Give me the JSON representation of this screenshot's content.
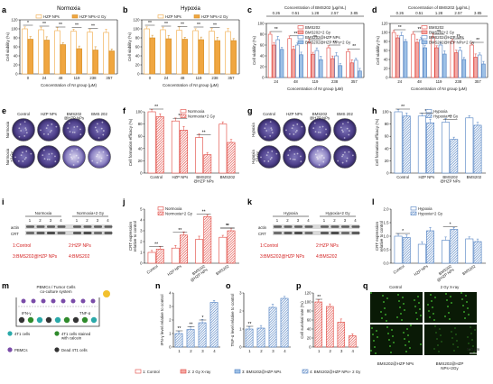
{
  "colors": {
    "orange": "#f0a640",
    "orange_dark": "#d4902a",
    "red": "#e0443c",
    "red_light": "#f4a9a4",
    "blue": "#4e7fc1",
    "blue_light": "#9ec1e6",
    "gray": "#9aa5ad",
    "purple": "#4d3f8a",
    "green": "#2f8a2b"
  },
  "panels": {
    "a": {
      "label": "a",
      "title": "Normoxia",
      "legend": [
        "HZP NPs",
        "HZP NPs+2 Gy"
      ],
      "ylabel": "Cell viability (%)",
      "xlabel": "Concentration of NI group (μM)",
      "yticks": [
        "0",
        "20",
        "40",
        "60",
        "80",
        "100",
        "120"
      ],
      "xticks": [
        "0",
        "24",
        "48",
        "119",
        "238",
        "357"
      ],
      "sig": [
        "*",
        "**",
        "**",
        "**",
        "**"
      ]
    },
    "b": {
      "label": "b",
      "title": "Hypoxia",
      "legend": [
        "HZP NPs",
        "HZP NPs+2 Gy"
      ],
      "ylabel": "Cell viability (%)",
      "xlabel": "Concentration of NI group (μM)",
      "yticks": [
        "0",
        "20",
        "40",
        "60",
        "80",
        "100",
        "120"
      ],
      "xticks": [
        "0",
        "24",
        "48",
        "119",
        "238",
        "357"
      ],
      "sig": [
        "**",
        "**",
        "**",
        "**",
        "**"
      ]
    },
    "c": {
      "label": "c",
      "title": "Normoxia",
      "toptitle": "Concentration of BMS202 (μg/mL)",
      "topticks": [
        "0.26",
        "0.51",
        "1.28",
        "2.57",
        "3.85"
      ],
      "legend": [
        "BMS202",
        "BMS202+2 Gy",
        "BMS202@HZP NPs",
        "BMS202@HZP NPs+2 Gy"
      ],
      "ylabel": "Cell viability (%)",
      "xlabel": "Concentration of NI group (μM)",
      "yticks": [
        "0",
        "20",
        "40",
        "60",
        "80",
        "100"
      ],
      "xticks": [
        "24",
        "48",
        "119",
        "238",
        "357"
      ],
      "sig": [
        "**",
        "**",
        "**",
        "**",
        "**"
      ]
    },
    "d": {
      "label": "d",
      "title": "Hypoxia",
      "toptitle": "Concentration of BMS202 (μg/mL)",
      "topticks": [
        "0.26",
        "0.51",
        "1.28",
        "2.57",
        "3.85"
      ],
      "legend": [
        "BMS202",
        "BMS202+2 Gy",
        "BMS202@HZP NPs",
        "BMS202@HZP NPs+2 Gy"
      ],
      "ylabel": "Cell viability (%)",
      "xlabel": "Concentration of NI group (μM)",
      "yticks": [
        "0",
        "20",
        "40",
        "60",
        "80",
        "100",
        "120"
      ],
      "xticks": [
        "24",
        "48",
        "119",
        "238",
        "357"
      ],
      "sig": [
        "**",
        "**",
        "**",
        "**",
        "**"
      ]
    },
    "e": {
      "label": "e",
      "cols": [
        "Control",
        "HZP NPs",
        "BMS202\n@HZP NPs",
        "BMS 202"
      ],
      "rows": [
        "Normoxia",
        "Normoxia\n+2 Gy"
      ]
    },
    "f": {
      "label": "f",
      "legend": [
        "Normoxia",
        "Normoxia+2 Gy"
      ],
      "ylabel": "Cell formation efficacy (%)",
      "yticks": [
        "0",
        "20",
        "40",
        "60",
        "80",
        "100"
      ],
      "xticks": [
        "Control",
        "HZP NPs",
        "BMS202\n@HZP NPs",
        "BMS202"
      ],
      "sig": [
        "**",
        "**",
        "**"
      ]
    },
    "g": {
      "label": "g",
      "cols": [
        "Control",
        "HZP NPs",
        "BMS202\n@HZP NPs",
        "BMS 202"
      ],
      "rows": [
        "Hypoxia",
        "Hypoxia\n+2 Gy"
      ]
    },
    "h": {
      "label": "h",
      "legend": [
        "Hypoxia",
        "Hypoxia+2 Gy"
      ],
      "ylabel": "Cell formation efficacy (%)",
      "yticks": [
        "0",
        "20",
        "40",
        "60",
        "80",
        "100"
      ],
      "xticks": [
        "Control",
        "HZP NPs",
        "BMS202\n@HZP NPs",
        "BMS202"
      ],
      "sig": [
        "**",
        "**",
        "**"
      ]
    },
    "i": {
      "label": "i",
      "group1": "Normoxia",
      "group2": "Normoxia+2 Gy",
      "lanes": [
        "1",
        "2",
        "3",
        "4",
        "1",
        "2",
        "3",
        "4"
      ],
      "rowlabels": [
        "actin",
        "CRT"
      ],
      "keys": [
        "1:Control",
        "2:HZP NPs",
        "3:BMS202@HZP NPs",
        "4:BMS202"
      ]
    },
    "j": {
      "label": "j",
      "legend": [
        "Normoxia",
        "Normoxia+2 Gy"
      ],
      "ylabel": "CRT expression\nrelative to control",
      "yticks": [
        "0",
        "1",
        "2",
        "3",
        "4",
        "5"
      ],
      "xticks": [
        "Control",
        "HZP NPs",
        "BMS202\n@HZP NPs",
        "BMS202"
      ],
      "sig": [
        "**",
        "**",
        "**",
        "*",
        "**"
      ]
    },
    "k": {
      "label": "k",
      "group1": "Hypoxia",
      "group2": "Hypoxia+2 Gy",
      "lanes": [
        "1",
        "2",
        "3",
        "4",
        "1",
        "2",
        "3",
        "4"
      ],
      "rowlabels": [
        "actin",
        "CRT"
      ],
      "keys": [
        "1:Control",
        "2:HZP NPs",
        "3:BMS202@HZP NPs",
        "4:BMS202"
      ]
    },
    "l": {
      "label": "l",
      "legend": [
        "Hypoxia",
        "Hypoxia+2 Gy"
      ],
      "ylabel": "CRT expression\nrelative to control",
      "yticks": [
        "0.0",
        "0.5",
        "1.0",
        "1.5",
        "2.0"
      ],
      "xticks": [
        "Control",
        "HZP NPs",
        "BMS202\n@HZP NPs",
        "BMS202"
      ],
      "sig": [
        "*",
        "*"
      ]
    },
    "m": {
      "label": "m",
      "title": "PBMCs / Tumor Cells\nco-culture system",
      "legend": [
        "4T1 cells",
        "4T1 cells stained\nwith calcein",
        "PBMCs",
        "Dead 4T1 cells"
      ],
      "cytokines": [
        "IFN-γ",
        "TNF-α"
      ]
    },
    "n": {
      "label": "n",
      "ylabel": "IFN-γ level relative to control",
      "yticks": [
        "0",
        "1",
        "2",
        "3",
        "4"
      ],
      "xticks": [
        "1",
        "2",
        "3",
        "4"
      ],
      "sig": [
        "**",
        "**",
        "*"
      ]
    },
    "o": {
      "label": "o",
      "ylabel": "TNF-α level relative to control",
      "yticks": [
        "0",
        "1",
        "2",
        "3"
      ],
      "xticks": [
        "1",
        "2",
        "3",
        "4"
      ],
      "sig": [
        "**"
      ]
    },
    "p": {
      "label": "p",
      "ylabel": "Cell survival rate (%)",
      "yticks": [
        "0",
        "20",
        "40",
        "60",
        "80",
        "100",
        "120"
      ],
      "xticks": [
        "1",
        "2",
        "3",
        "4"
      ],
      "sig": [
        "**"
      ]
    },
    "q": {
      "label": "q",
      "cols": [
        "Control",
        "2 Gy X-ray"
      ],
      "captions": [
        "BMS202@HZP NPs",
        "BMS202@HZP\nNPs+2Gy"
      ],
      "scalebar": "500 μm"
    },
    "bottom_legend": [
      "1: Control",
      "2: 2 Gy X-ray",
      "3: BMS202@HZP NPs",
      "4: BMS202@HZP NPs+ 2 Gy"
    ]
  },
  "chart_data": [
    {
      "panel": "a",
      "type": "bar",
      "x": [
        "0",
        "24",
        "48",
        "119",
        "238",
        "357"
      ],
      "ylim": [
        0,
        120
      ],
      "series": [
        {
          "name": "HZP NPs",
          "values": [
            100,
            98,
            96,
            95,
            93,
            92
          ]
        },
        {
          "name": "HZP NPs+2 Gy",
          "values": [
            77,
            75,
            65,
            56,
            53,
            51
          ]
        }
      ]
    },
    {
      "panel": "b",
      "type": "bar",
      "x": [
        "0",
        "24",
        "48",
        "119",
        "238",
        "357"
      ],
      "ylim": [
        0,
        120
      ],
      "series": [
        {
          "name": "HZP NPs",
          "values": [
            100,
            98,
            97,
            96,
            95,
            94
          ]
        },
        {
          "name": "HZP NPs+2 Gy",
          "values": [
            80,
            78,
            77,
            76,
            74,
            74
          ]
        }
      ]
    },
    {
      "panel": "c",
      "type": "bar",
      "x": [
        "24",
        "48",
        "119",
        "238",
        "357"
      ],
      "ylim": [
        0,
        100
      ],
      "series": [
        {
          "name": "BMS202",
          "values": [
            80,
            72,
            65,
            55,
            48
          ]
        },
        {
          "name": "BMS202+2 Gy",
          "values": [
            60,
            52,
            43,
            35,
            27
          ]
        },
        {
          "name": "BMS202@HZP NPs",
          "values": [
            70,
            60,
            50,
            40,
            32
          ]
        },
        {
          "name": "BMS202@HZP NPs+2 Gy",
          "values": [
            52,
            42,
            33,
            22,
            12
          ]
        }
      ]
    },
    {
      "panel": "d",
      "type": "bar",
      "x": [
        "24",
        "48",
        "119",
        "238",
        "357"
      ],
      "ylim": [
        0,
        120
      ],
      "series": [
        {
          "name": "BMS202",
          "values": [
            100,
            96,
            90,
            80,
            72
          ]
        },
        {
          "name": "BMS202+2 Gy",
          "values": [
            88,
            78,
            66,
            55,
            45
          ]
        },
        {
          "name": "BMS202@HZP NPs",
          "values": [
            93,
            84,
            72,
            60,
            50
          ]
        },
        {
          "name": "BMS202@HZP NPs+2 Gy",
          "values": [
            80,
            66,
            52,
            40,
            30
          ]
        }
      ]
    },
    {
      "panel": "f",
      "type": "bar",
      "x": [
        "Control",
        "HZP NPs",
        "BMS202@HZP NPs",
        "BMS202"
      ],
      "ylim": [
        0,
        100
      ],
      "series": [
        {
          "name": "Normoxia",
          "values": [
            100,
            85,
            58,
            80
          ]
        },
        {
          "name": "Normoxia+2 Gy",
          "values": [
            92,
            70,
            30,
            50
          ]
        }
      ]
    },
    {
      "panel": "h",
      "type": "bar",
      "x": [
        "Control",
        "HZP NPs",
        "BMS202@HZP NPs",
        "BMS202"
      ],
      "ylim": [
        0,
        100
      ],
      "series": [
        {
          "name": "Hypoxia",
          "values": [
            100,
            93,
            83,
            90
          ]
        },
        {
          "name": "Hypoxia+2 Gy",
          "values": [
            93,
            82,
            55,
            78
          ]
        }
      ]
    },
    {
      "panel": "j",
      "type": "bar",
      "x": [
        "Control",
        "HZP NPs",
        "BMS202@HZP NPs",
        "BMS202"
      ],
      "ylim": [
        0,
        5
      ],
      "series": [
        {
          "name": "Normoxia",
          "values": [
            1.0,
            1.4,
            2.2,
            2.4
          ]
        },
        {
          "name": "Normoxia+2 Gy",
          "values": [
            1.3,
            2.6,
            4.3,
            3.0
          ]
        }
      ]
    },
    {
      "panel": "l",
      "type": "bar",
      "x": [
        "Control",
        "HZP NPs",
        "BMS202@HZP NPs",
        "BMS202"
      ],
      "ylim": [
        0,
        2
      ],
      "series": [
        {
          "name": "Hypoxia",
          "values": [
            1.0,
            0.7,
            0.85,
            0.9
          ]
        },
        {
          "name": "Hypoxia+2 Gy",
          "values": [
            0.95,
            1.2,
            1.25,
            0.8
          ]
        }
      ]
    },
    {
      "panel": "n",
      "type": "bar",
      "x": [
        "1",
        "2",
        "3",
        "4"
      ],
      "ylim": [
        0,
        4
      ],
      "series": [
        {
          "values": [
            1.0,
            1.3,
            1.8,
            3.3
          ]
        }
      ]
    },
    {
      "panel": "o",
      "type": "bar",
      "x": [
        "1",
        "2",
        "3",
        "4"
      ],
      "ylim": [
        0,
        3
      ],
      "series": [
        {
          "values": [
            1.0,
            1.05,
            2.2,
            2.7
          ]
        }
      ]
    },
    {
      "panel": "p",
      "type": "bar",
      "x": [
        "1",
        "2",
        "3",
        "4"
      ],
      "ylim": [
        0,
        120
      ],
      "series": [
        {
          "values": [
            100,
            90,
            55,
            25
          ]
        }
      ]
    }
  ]
}
